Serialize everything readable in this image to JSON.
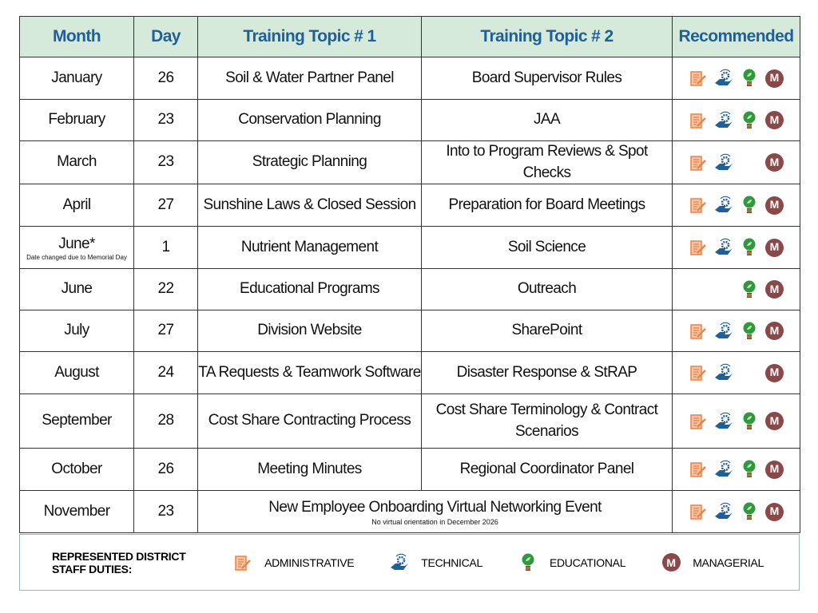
{
  "headers": [
    "Month",
    "Day",
    "Training Topic # 1",
    "Training Topic # 2",
    "Recommended"
  ],
  "rows": [
    {
      "month": "January",
      "day": "26",
      "topic1": "Soil & Water Partner Panel",
      "topic2": "Board Supervisor Rules",
      "icons": [
        "administrative",
        "technical",
        "educational",
        "managerial"
      ]
    },
    {
      "month": "February",
      "day": "23",
      "topic1": "Conservation Planning",
      "topic2": "JAA",
      "icons": [
        "administrative",
        "technical",
        "educational",
        "managerial"
      ]
    },
    {
      "month": "March",
      "day": "23",
      "topic1": "Strategic Planning",
      "topic2": "Into to Program Reviews & Spot Checks",
      "icons": [
        "administrative",
        "technical",
        "managerial"
      ]
    },
    {
      "month": "April",
      "day": "27",
      "topic1": "Sunshine Laws & Closed Session",
      "topic2": "Preparation for Board Meetings",
      "icons": [
        "administrative",
        "technical",
        "educational",
        "managerial"
      ]
    },
    {
      "month": "June*",
      "month_note": "Date changed due to Memorial Day",
      "day": "1",
      "topic1": "Nutrient Management",
      "topic2": "Soil Science",
      "icons": [
        "administrative",
        "technical",
        "educational",
        "managerial"
      ]
    },
    {
      "month": "June",
      "day": "22",
      "topic1": "Educational Programs",
      "topic2": "Outreach",
      "icons": [
        "educational",
        "managerial"
      ]
    },
    {
      "month": "July",
      "day": "27",
      "topic1": "Division Website",
      "topic2": "SharePoint",
      "icons": [
        "administrative",
        "technical",
        "educational",
        "managerial"
      ]
    },
    {
      "month": "August",
      "day": "24",
      "topic1": "TA Requests & Teamwork Software",
      "topic2": "Disaster Response & StRAP",
      "icons": [
        "administrative",
        "technical",
        "managerial"
      ]
    },
    {
      "month": "September",
      "day": "28",
      "topic1": "Cost Share Contracting Process",
      "topic2": "Cost Share Terminology & Contract Scenarios",
      "icons": [
        "administrative",
        "technical",
        "educational",
        "managerial"
      ]
    },
    {
      "month": "October",
      "day": "26",
      "topic1": "Meeting Minutes",
      "topic2": "Regional Coordinator Panel",
      "icons": [
        "administrative",
        "technical",
        "educational",
        "managerial"
      ]
    },
    {
      "month": "November",
      "day": "23",
      "merged_topic": "New Employee Onboarding Virtual Networking Event",
      "merged_note": "No virtual orientation in December 2026",
      "icons": [
        "administrative",
        "technical",
        "educational",
        "managerial"
      ]
    }
  ],
  "legend": {
    "title": "REPRESENTED DISTRICT STAFF DUTIES:",
    "items": [
      {
        "key": "administrative",
        "label": "ADMINISTRATIVE"
      },
      {
        "key": "technical",
        "label": "TECHNICAL"
      },
      {
        "key": "educational",
        "label": "EDUCATIONAL"
      },
      {
        "key": "managerial",
        "label": "MANAGERIAL"
      }
    ]
  },
  "managerial_letter": "M",
  "colors": {
    "header_bg": "#d5eadb",
    "header_text": "#1f5f9a",
    "administrative": "#e8834a",
    "technical": "#1f5f9a",
    "educational": "#2e9a3a",
    "managerial": "#8a4848"
  }
}
